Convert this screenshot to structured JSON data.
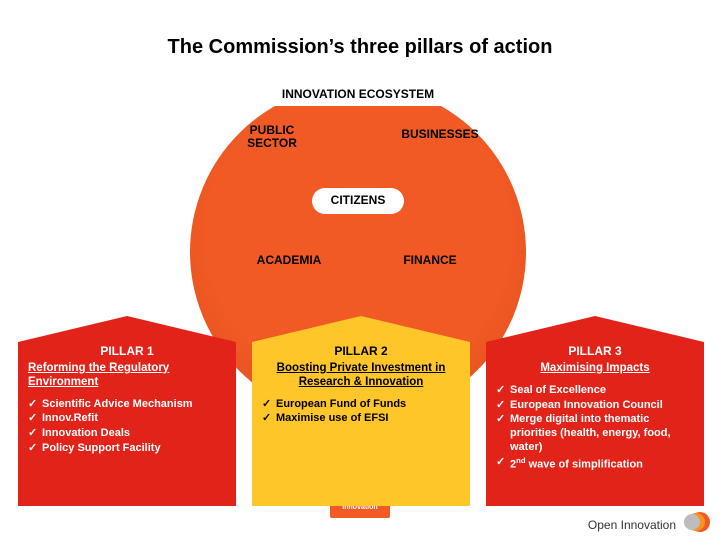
{
  "colors": {
    "orange": "#f15a24",
    "orange_dark": "#d94a1a",
    "pillar1": "#e2231a",
    "pillar2": "#ffc629",
    "pillar3": "#e2231a",
    "minibox": "#f15a24",
    "logo_outer": "#f15a24",
    "logo_mid": "#f7941d",
    "logo_inner": "#bdbdbd"
  },
  "title": "The Commission’s three pillars of action",
  "subtitle": "INNOVATION ECOSYSTEM",
  "ecosystem": {
    "public_sector": "PUBLIC SECTOR",
    "businesses": "BUSINESSES",
    "citizens": "CITIZENS",
    "academia": "ACADEMIA",
    "finance": "FINANCE"
  },
  "pillars": [
    {
      "title": "PILLAR 1",
      "subtitle": "Reforming the Regulatory Environment",
      "items": [
        "Scientific Advice Mechanism",
        "Innov.Refit",
        "Innovation Deals",
        "Policy Support Facility"
      ]
    },
    {
      "title": "PILLAR 2",
      "subtitle": "Boosting Private Investment in Research & Innovation",
      "items": [
        "European Fund of Funds",
        "Maximise use of EFSI"
      ]
    },
    {
      "title": "PILLAR 3",
      "subtitle": "Maximising Impacts",
      "items": [
        "Seal of Excellence",
        "European Innovation Council",
        "Merge digital into thematic priorities (health, energy, food, water)",
        "2nd wave of simplification"
      ]
    }
  ],
  "minibox": "Research & Innovation",
  "footer": "Open Innovation",
  "layout": {
    "circle_font": 12,
    "title_font": 20,
    "sub_font": 12,
    "pill_font": 11
  }
}
